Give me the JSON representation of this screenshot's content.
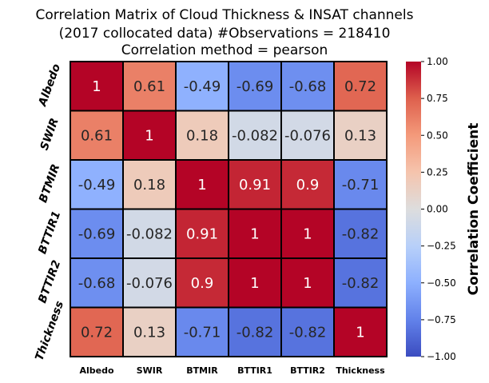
{
  "chart_data": {
    "type": "heatmap",
    "title": [
      "Correlation Matrix of Cloud Thickness & INSAT channels",
      "(2017 collocated data) #Observations = 218410",
      "Correlation method = pearson"
    ],
    "x_labels": [
      "Albedo",
      "SWIR",
      "BTMIR",
      "BTTIR1",
      "BTTIR2",
      "Thickness"
    ],
    "y_labels": [
      "Albedo",
      "SWIR",
      "BTMIR",
      "BTTIR1",
      "BTTIR2",
      "Thickness"
    ],
    "values": [
      [
        1,
        0.61,
        -0.49,
        -0.69,
        -0.68,
        0.72
      ],
      [
        0.61,
        1,
        0.18,
        -0.082,
        -0.076,
        0.13
      ],
      [
        -0.49,
        0.18,
        1,
        0.91,
        0.9,
        -0.71
      ],
      [
        -0.69,
        -0.082,
        0.91,
        1,
        1,
        -0.82
      ],
      [
        -0.68,
        -0.076,
        0.9,
        1,
        1,
        -0.82
      ],
      [
        0.72,
        0.13,
        -0.71,
        -0.82,
        -0.82,
        1
      ]
    ],
    "colorbar": {
      "label": "Correlation Coefficient",
      "range": [
        -1,
        1
      ],
      "ticks": [
        "1.00",
        "0.75",
        "0.50",
        "0.25",
        "0.00",
        "−0.25",
        "−0.50",
        "−0.75",
        "−1.00"
      ],
      "colormap": "coolwarm"
    },
    "colors": {
      "low": "#3b4cc0",
      "mid": "#dddddd",
      "high": "#b40426"
    }
  }
}
